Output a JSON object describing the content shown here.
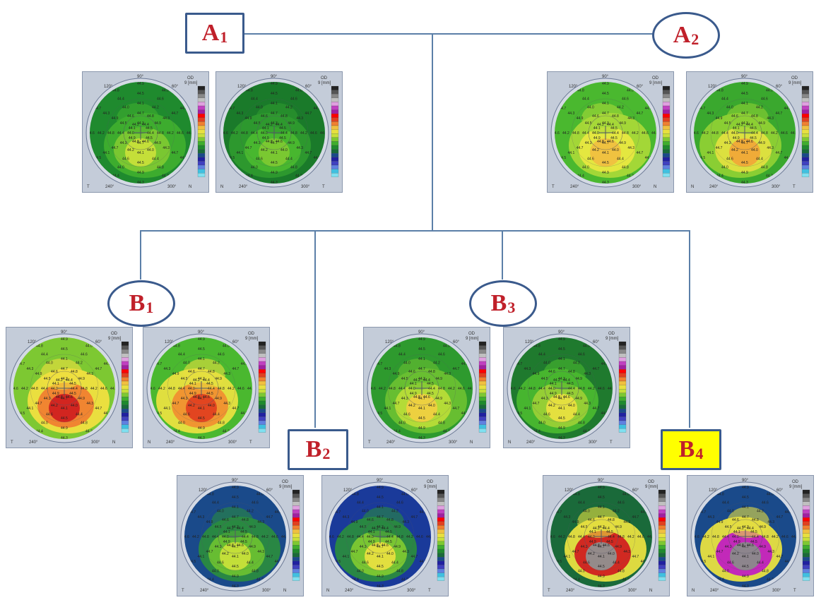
{
  "labels": {
    "a1": {
      "letter": "A",
      "sub": "1"
    },
    "a2": {
      "letter": "A",
      "sub": "2"
    },
    "b1": {
      "letter": "B",
      "sub": "1"
    },
    "b2": {
      "letter": "B",
      "sub": "2"
    },
    "b3": {
      "letter": "B",
      "sub": "3"
    },
    "b4": {
      "letter": "B",
      "sub": "4"
    }
  },
  "map_text": {
    "eye": "OD",
    "scale": "9 [mm]",
    "deg90": "90°",
    "deg120": "120°",
    "deg60": "60°",
    "deg240": "240°",
    "deg300": "300°",
    "temporal": "T",
    "nasal": "N"
  },
  "maps": [
    {
      "group": "A1",
      "side": "left",
      "colors": [
        "#1f8a2e",
        "#3fae2e",
        "#7dc832",
        "#c8e03a"
      ]
    },
    {
      "group": "A1",
      "side": "right",
      "colors": [
        "#1a7a2a",
        "#2e9a2e",
        "#4ab82f",
        "#7dc832"
      ]
    },
    {
      "group": "A2",
      "side": "left",
      "colors": [
        "#4ab82f",
        "#a8d838",
        "#e8e840",
        "#f0c040"
      ]
    },
    {
      "group": "A2",
      "side": "right",
      "colors": [
        "#3aa82e",
        "#8ed034",
        "#e0e040",
        "#f0a838"
      ]
    },
    {
      "group": "B1",
      "side": "left",
      "colors": [
        "#7dc832",
        "#f0e040",
        "#f08030",
        "#d02020"
      ]
    },
    {
      "group": "B1",
      "side": "right",
      "colors": [
        "#4ab82f",
        "#e8e040",
        "#f09030",
        "#e04020"
      ]
    },
    {
      "group": "B2",
      "side": "left",
      "colors": [
        "#1a4a8a",
        "#2a8a40",
        "#6ac032",
        "#c8e03a"
      ]
    },
    {
      "group": "B2",
      "side": "right",
      "colors": [
        "#1a3a9a",
        "#2a8a40",
        "#7dc832",
        "#e8e040"
      ]
    },
    {
      "group": "B3",
      "side": "left",
      "colors": [
        "#2e9a2e",
        "#6ac032",
        "#b8dc38",
        "#f0d040"
      ]
    },
    {
      "group": "B3",
      "side": "right",
      "colors": [
        "#1f7a2e",
        "#4ab82f",
        "#9ad036",
        "#e8e040"
      ]
    },
    {
      "group": "B4",
      "side": "left",
      "colors": [
        "#1a6a3a",
        "#e8e040",
        "#d02020",
        "#909090"
      ]
    },
    {
      "group": "B4",
      "side": "right",
      "colors": [
        "#1a4a8a",
        "#e8e040",
        "#c020c0",
        "#8a8a8a"
      ]
    }
  ]
}
